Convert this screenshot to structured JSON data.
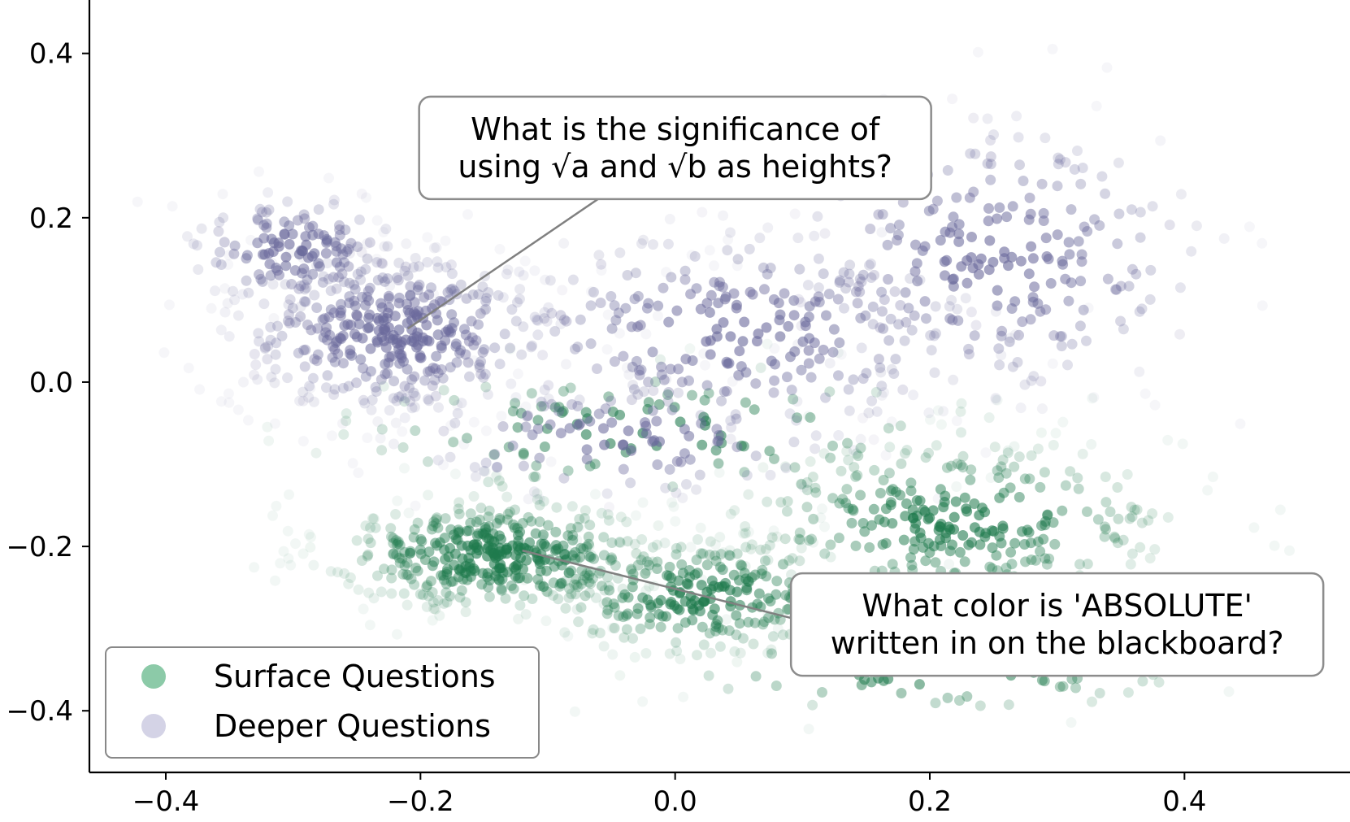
{
  "chart_data": {
    "type": "scatter",
    "title": "",
    "xlabel": "",
    "ylabel": "",
    "xlim": [
      -0.46,
      0.53
    ],
    "ylim": [
      -0.475,
      0.465
    ],
    "xticks": [
      -0.4,
      -0.2,
      0.0,
      0.2,
      0.4
    ],
    "yticks": [
      -0.4,
      -0.2,
      0.0,
      0.2,
      0.4
    ],
    "xtick_labels": [
      "−0.4",
      "−0.2",
      "0.0",
      "0.2",
      "0.4"
    ],
    "ytick_labels": [
      "−0.4",
      "−0.2",
      "0.0",
      "0.2",
      "0.4"
    ],
    "grid": false,
    "legend_position": "lower-left",
    "series": [
      {
        "name": "Surface Questions",
        "color": "#1f7a4d",
        "clusters": [
          {
            "center": [
              -0.14,
              -0.21
            ],
            "spread": [
              0.09,
              0.05
            ],
            "count": 420
          },
          {
            "center": [
              0.02,
              -0.26
            ],
            "spread": [
              0.09,
              0.05
            ],
            "count": 260
          },
          {
            "center": [
              0.22,
              -0.17
            ],
            "spread": [
              0.12,
              0.07
            ],
            "count": 320
          },
          {
            "center": [
              -0.02,
              -0.06
            ],
            "spread": [
              0.18,
              0.06
            ],
            "count": 120
          },
          {
            "center": [
              0.2,
              -0.35
            ],
            "spread": [
              0.15,
              0.04
            ],
            "count": 80
          }
        ]
      },
      {
        "name": "Deeper Questions",
        "color": "#6b6a9c",
        "clusters": [
          {
            "center": [
              -0.22,
              0.06
            ],
            "spread": [
              0.09,
              0.07
            ],
            "count": 420
          },
          {
            "center": [
              -0.3,
              0.16
            ],
            "spread": [
              0.06,
              0.05
            ],
            "count": 140
          },
          {
            "center": [
              0.05,
              0.06
            ],
            "spread": [
              0.14,
              0.09
            ],
            "count": 260
          },
          {
            "center": [
              0.25,
              0.15
            ],
            "spread": [
              0.12,
              0.12
            ],
            "count": 260
          },
          {
            "center": [
              -0.04,
              -0.07
            ],
            "spread": [
              0.12,
              0.05
            ],
            "count": 120
          }
        ]
      }
    ],
    "annotations": [
      {
        "lines": [
          "What is the significance of",
          "using √a and √b as heights?"
        ],
        "point": [
          -0.21,
          0.065
        ],
        "box_center": [
          0.0,
          0.285
        ]
      },
      {
        "lines": [
          "What color is 'ABSOLUTE'",
          "written in on the blackboard?"
        ],
        "point": [
          -0.12,
          -0.205
        ],
        "box_center": [
          0.3,
          -0.295
        ]
      }
    ]
  },
  "legend": {
    "items": [
      {
        "label": "Surface Questions",
        "color": "#8ccaa8"
      },
      {
        "label": "Deeper Questions",
        "color": "#d4d3e6"
      }
    ]
  }
}
